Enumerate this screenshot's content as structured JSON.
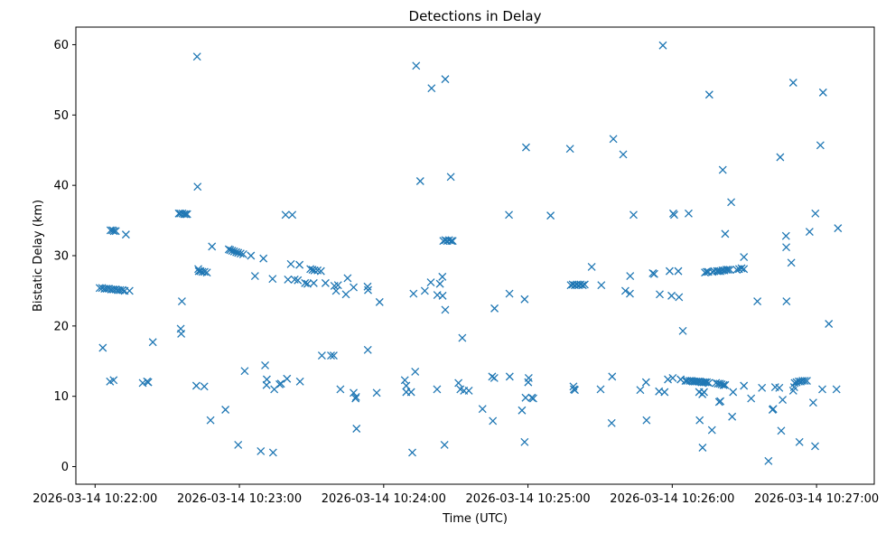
{
  "chart_data": {
    "type": "scatter",
    "title": "Detections in Delay",
    "xlabel": "Time (UTC)",
    "ylabel": "Bistatic Delay (km)",
    "marker": "x",
    "color": "#1f77b4",
    "xlim": [
      -8,
      324
    ],
    "ylim": [
      -2.5,
      62.5
    ],
    "x_unit": "seconds since 2026-03-14 10:22:00",
    "xticks": [
      {
        "value": 0,
        "label": "2026-03-14 10:22:00"
      },
      {
        "value": 60,
        "label": "2026-03-14 10:23:00"
      },
      {
        "value": 120,
        "label": "2026-03-14 10:24:00"
      },
      {
        "value": 180,
        "label": "2026-03-14 10:25:00"
      },
      {
        "value": 240,
        "label": "2026-03-14 10:26:00"
      },
      {
        "value": 300,
        "label": "2026-03-14 10:27:00"
      }
    ],
    "yticks": [
      {
        "value": 0,
        "label": "0"
      },
      {
        "value": 10,
        "label": "10"
      },
      {
        "value": 20,
        "label": "20"
      },
      {
        "value": 30,
        "label": "30"
      },
      {
        "value": 40,
        "label": "40"
      },
      {
        "value": 50,
        "label": "50"
      },
      {
        "value": 60,
        "label": "60"
      }
    ],
    "points": [
      [
        1.9,
        25.4
      ],
      [
        2.9,
        25.4
      ],
      [
        3.9,
        25.3
      ],
      [
        4.8,
        25.3
      ],
      [
        5.7,
        25.3
      ],
      [
        6.7,
        25.2
      ],
      [
        7.6,
        25.2
      ],
      [
        8.6,
        25.2
      ],
      [
        9.5,
        25.1
      ],
      [
        10.4,
        25.1
      ],
      [
        11.4,
        25.1
      ],
      [
        12.3,
        25.0
      ],
      [
        14.3,
        25.0
      ],
      [
        3.2,
        16.9
      ],
      [
        6.2,
        12.1
      ],
      [
        7.7,
        12.3
      ],
      [
        19.8,
        11.9
      ],
      [
        21.6,
        12.1
      ],
      [
        22.1,
        12.0
      ],
      [
        6.4,
        33.6
      ],
      [
        7.2,
        33.6
      ],
      [
        7.8,
        33.5
      ],
      [
        8.6,
        33.5
      ],
      [
        12.8,
        33.0
      ],
      [
        24.0,
        17.7
      ],
      [
        35.6,
        19.6
      ],
      [
        35.8,
        18.9
      ],
      [
        34.8,
        36.0
      ],
      [
        36.1,
        23.5
      ],
      [
        35.4,
        36.0
      ],
      [
        36.3,
        36.0
      ],
      [
        37.0,
        35.9
      ],
      [
        37.7,
        35.9
      ],
      [
        38.3,
        35.9
      ],
      [
        42.4,
        58.3
      ],
      [
        42.6,
        39.8
      ],
      [
        42.9,
        28.1
      ],
      [
        43.1,
        27.8
      ],
      [
        43.8,
        27.8
      ],
      [
        44.6,
        27.7
      ],
      [
        45.5,
        27.7
      ],
      [
        46.5,
        27.6
      ],
      [
        42.1,
        11.5
      ],
      [
        45.4,
        11.4
      ],
      [
        48.6,
        31.3
      ],
      [
        48.0,
        6.6
      ],
      [
        54.2,
        8.1
      ],
      [
        59.5,
        3.1
      ],
      [
        55.6,
        30.9
      ],
      [
        56.2,
        30.8
      ],
      [
        57.0,
        30.7
      ],
      [
        57.8,
        30.6
      ],
      [
        58.7,
        30.5
      ],
      [
        59.5,
        30.4
      ],
      [
        60.5,
        30.3
      ],
      [
        61.6,
        30.2
      ],
      [
        64.8,
        30.0
      ],
      [
        62.2,
        13.6
      ],
      [
        66.5,
        27.1
      ],
      [
        68.9,
        2.2
      ],
      [
        70.0,
        29.6
      ],
      [
        70.7,
        14.4
      ],
      [
        71.4,
        12.4
      ],
      [
        71.3,
        11.6
      ],
      [
        73.8,
        26.7
      ],
      [
        74.0,
        2.0
      ],
      [
        74.5,
        11.0
      ],
      [
        76.7,
        11.7
      ],
      [
        77.3,
        11.8
      ],
      [
        79.2,
        35.8
      ],
      [
        79.8,
        12.5
      ],
      [
        80.2,
        26.6
      ],
      [
        81.4,
        28.8
      ],
      [
        82.0,
        35.8
      ],
      [
        83.0,
        26.6
      ],
      [
        84.3,
        26.5
      ],
      [
        85.0,
        28.7
      ],
      [
        85.2,
        12.1
      ],
      [
        87.3,
        26.1
      ],
      [
        88.3,
        26.0
      ],
      [
        89.5,
        28.1
      ],
      [
        90.4,
        28.0
      ],
      [
        90.9,
        26.1
      ],
      [
        91.2,
        27.9
      ],
      [
        92.5,
        27.9
      ],
      [
        93.9,
        27.8
      ],
      [
        94.3,
        15.8
      ],
      [
        95.8,
        26.1
      ],
      [
        98.1,
        15.8
      ],
      [
        99.2,
        15.8
      ],
      [
        99.5,
        25.7
      ],
      [
        100.2,
        25.0
      ],
      [
        101.0,
        25.8
      ],
      [
        102.0,
        11.0
      ],
      [
        104.3,
        24.5
      ],
      [
        105.0,
        26.8
      ],
      [
        107.5,
        25.5
      ],
      [
        107.5,
        10.5
      ],
      [
        108.3,
        9.7
      ],
      [
        108.5,
        9.9
      ],
      [
        108.7,
        5.4
      ],
      [
        113.3,
        25.6
      ],
      [
        113.5,
        25.1
      ],
      [
        113.4,
        16.6
      ],
      [
        117.1,
        10.5
      ],
      [
        118.3,
        23.4
      ],
      [
        128.8,
        12.3
      ],
      [
        129.4,
        10.6
      ],
      [
        129.4,
        11.5
      ],
      [
        131.4,
        10.6
      ],
      [
        133.1,
        13.5
      ],
      [
        131.9,
        2.0
      ],
      [
        132.4,
        24.6
      ],
      [
        133.5,
        57.0
      ],
      [
        135.2,
        40.6
      ],
      [
        137.1,
        25.0
      ],
      [
        139.6,
        26.2
      ],
      [
        139.9,
        53.8
      ],
      [
        142.2,
        11.0
      ],
      [
        142.3,
        24.4
      ],
      [
        143.4,
        26.0
      ],
      [
        144.4,
        27.0
      ],
      [
        144.5,
        24.3
      ],
      [
        144.8,
        32.1
      ],
      [
        145.6,
        32.2
      ],
      [
        146.4,
        32.1
      ],
      [
        147.2,
        32.2
      ],
      [
        148.1,
        32.1
      ],
      [
        148.7,
        32.1
      ],
      [
        145.6,
        55.1
      ],
      [
        145.6,
        22.3
      ],
      [
        145.3,
        3.1
      ],
      [
        147.9,
        41.2
      ],
      [
        151.1,
        11.9
      ],
      [
        151.9,
        11.0
      ],
      [
        152.7,
        18.3
      ],
      [
        153.4,
        10.8
      ],
      [
        155.4,
        10.8
      ],
      [
        161.1,
        8.2
      ],
      [
        165.1,
        12.8
      ],
      [
        165.4,
        6.5
      ],
      [
        166.1,
        22.5
      ],
      [
        166.0,
        12.6
      ],
      [
        172.1,
        35.8
      ],
      [
        172.3,
        24.6
      ],
      [
        172.4,
        12.8
      ],
      [
        177.5,
        8.0
      ],
      [
        178.6,
        23.8
      ],
      [
        178.6,
        3.5
      ],
      [
        179.0,
        9.8
      ],
      [
        179.2,
        45.4
      ],
      [
        180.1,
        12.0
      ],
      [
        180.3,
        12.6
      ],
      [
        181.6,
        9.8
      ],
      [
        182.2,
        9.7
      ],
      [
        189.4,
        35.7
      ],
      [
        197.5,
        45.2
      ],
      [
        197.8,
        25.8
      ],
      [
        198.6,
        25.9
      ],
      [
        199.5,
        25.8
      ],
      [
        200.3,
        25.9
      ],
      [
        201.1,
        25.8
      ],
      [
        201.9,
        25.9
      ],
      [
        202.8,
        25.8
      ],
      [
        203.6,
        25.9
      ],
      [
        198.9,
        11.4
      ],
      [
        199.1,
        11.0
      ],
      [
        199.5,
        10.9
      ],
      [
        206.5,
        28.4
      ],
      [
        210.2,
        11.0
      ],
      [
        210.5,
        25.8
      ],
      [
        214.8,
        6.2
      ],
      [
        215.0,
        12.8
      ],
      [
        215.5,
        46.6
      ],
      [
        219.6,
        44.4
      ],
      [
        220.5,
        25.0
      ],
      [
        222.4,
        24.6
      ],
      [
        222.5,
        27.1
      ],
      [
        223.9,
        35.8
      ],
      [
        226.7,
        10.9
      ],
      [
        229.1,
        12.0
      ],
      [
        229.3,
        6.6
      ],
      [
        231.9,
        27.5
      ],
      [
        232.5,
        27.4
      ],
      [
        234.5,
        10.7
      ],
      [
        234.8,
        24.5
      ],
      [
        236.1,
        59.9
      ],
      [
        236.8,
        10.6
      ],
      [
        238.2,
        12.4
      ],
      [
        238.9,
        27.8
      ],
      [
        239.7,
        24.3
      ],
      [
        240.2,
        12.6
      ],
      [
        240.4,
        36.0
      ],
      [
        240.8,
        35.8
      ],
      [
        242.5,
        27.8
      ],
      [
        242.8,
        24.1
      ],
      [
        243.5,
        12.4
      ],
      [
        244.4,
        19.3
      ],
      [
        245.5,
        12.2
      ],
      [
        246.2,
        12.2
      ],
      [
        246.8,
        36.0
      ],
      [
        247.2,
        12.2
      ],
      [
        248.0,
        12.2
      ],
      [
        248.6,
        12.1
      ],
      [
        249.3,
        12.1
      ],
      [
        250.0,
        12.1
      ],
      [
        250.8,
        12.1
      ],
      [
        251.5,
        12.1
      ],
      [
        252.2,
        12.0
      ],
      [
        253.0,
        12.0
      ],
      [
        253.7,
        12.0
      ],
      [
        254.4,
        12.0
      ],
      [
        255.2,
        11.9
      ],
      [
        251.2,
        10.6
      ],
      [
        251.4,
        6.6
      ],
      [
        252.5,
        10.3
      ],
      [
        253.2,
        10.6
      ],
      [
        252.6,
        2.7
      ],
      [
        253.6,
        27.6
      ],
      [
        254.3,
        27.7
      ],
      [
        255.0,
        27.7
      ],
      [
        255.4,
        52.9
      ],
      [
        256.5,
        5.2
      ],
      [
        256.7,
        27.7
      ],
      [
        257.4,
        27.8
      ],
      [
        258.2,
        11.9
      ],
      [
        259.0,
        11.8
      ],
      [
        259.8,
        11.8
      ],
      [
        259.5,
        9.2
      ],
      [
        260.0,
        9.3
      ],
      [
        260.5,
        11.7
      ],
      [
        261.3,
        11.6
      ],
      [
        262.0,
        11.6
      ],
      [
        258.6,
        27.8
      ],
      [
        259.3,
        27.8
      ],
      [
        260.1,
        27.8
      ],
      [
        260.9,
        27.9
      ],
      [
        261.7,
        27.9
      ],
      [
        261.0,
        42.2
      ],
      [
        262.0,
        33.1
      ],
      [
        262.5,
        28.0
      ],
      [
        263.2,
        28.0
      ],
      [
        264.0,
        28.0
      ],
      [
        264.5,
        37.6
      ],
      [
        264.9,
        7.1
      ],
      [
        265.3,
        10.6
      ],
      [
        266.8,
        28.0
      ],
      [
        267.8,
        28.1
      ],
      [
        268.8,
        28.2
      ],
      [
        269.8,
        28.1
      ],
      [
        269.8,
        29.8
      ],
      [
        269.8,
        11.5
      ],
      [
        272.8,
        9.7
      ],
      [
        275.4,
        23.5
      ],
      [
        277.3,
        11.2
      ],
      [
        280.0,
        0.8
      ],
      [
        281.7,
        8.1
      ],
      [
        282.0,
        8.2
      ],
      [
        282.8,
        11.3
      ],
      [
        284.5,
        11.2
      ],
      [
        284.9,
        44.0
      ],
      [
        285.3,
        5.1
      ],
      [
        285.9,
        9.5
      ],
      [
        287.3,
        32.8
      ],
      [
        287.4,
        31.2
      ],
      [
        287.5,
        23.5
      ],
      [
        289.5,
        29.0
      ],
      [
        290.3,
        54.6
      ],
      [
        290.3,
        10.8
      ],
      [
        290.7,
        11.3
      ],
      [
        290.9,
        11.9
      ],
      [
        291.7,
        12.0
      ],
      [
        292.6,
        12.1
      ],
      [
        293.4,
        12.1
      ],
      [
        294.2,
        12.2
      ],
      [
        295.1,
        12.2
      ],
      [
        296.0,
        12.2
      ],
      [
        292.9,
        3.5
      ],
      [
        297.1,
        33.4
      ],
      [
        298.6,
        9.1
      ],
      [
        299.5,
        36.0
      ],
      [
        299.4,
        2.9
      ],
      [
        301.6,
        45.7
      ],
      [
        302.4,
        11.0
      ],
      [
        302.7,
        53.2
      ],
      [
        305.1,
        20.3
      ],
      [
        308.3,
        11.0
      ],
      [
        308.9,
        33.9
      ]
    ]
  }
}
